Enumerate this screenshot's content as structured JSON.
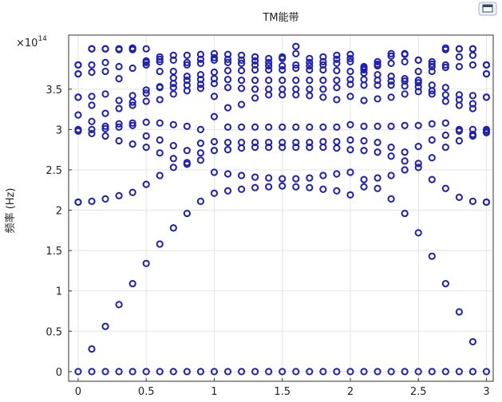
{
  "chart_data": {
    "type": "scatter",
    "title": "TM能带",
    "xlabel": "",
    "ylabel": "频率 (Hz)",
    "y_multiplier": "×10",
    "y_multiplier_exponent": "14",
    "xlim": [
      -0.07,
      3.05
    ],
    "ylim": [
      -0.12,
      4.17
    ],
    "grid": true,
    "legend": "none",
    "marker": "hollow-circle",
    "marker_color": "#1f1fb0",
    "xticks": [
      0,
      0.5,
      1,
      1.5,
      2,
      2.5,
      3
    ],
    "xtick_labels": [
      "0",
      "0.5",
      "1",
      "1.5",
      "2",
      "2.5",
      "3"
    ],
    "yticks": [
      0,
      0.5,
      1,
      1.5,
      2,
      2.5,
      3,
      3.5
    ],
    "ytick_labels": [
      "0",
      "0.5",
      "1",
      "1.5",
      "2",
      "2.5",
      "3",
      "3.5"
    ],
    "x": [
      0,
      0.1,
      0.2,
      0.3,
      0.4,
      0.5,
      0.6,
      0.7,
      0.8,
      0.9,
      1.0,
      1.1,
      1.2,
      1.3,
      1.4,
      1.5,
      1.6,
      1.7,
      1.8,
      1.9,
      2.0,
      2.1,
      2.2,
      2.3,
      2.4,
      2.5,
      2.6,
      2.7,
      2.8,
      2.9,
      3.0
    ],
    "series": [
      {
        "values": [
          0,
          0,
          0,
          0,
          0,
          0,
          0,
          0,
          0,
          0,
          0,
          0,
          0,
          0,
          0,
          0,
          0,
          0,
          0,
          0,
          0,
          0,
          0,
          0,
          0,
          0,
          0,
          0,
          0,
          0,
          0
        ]
      },
      {
        "values": [
          2.1,
          0.28,
          0.56,
          0.83,
          1.09,
          1.34,
          1.58,
          1.78,
          1.96,
          2.11,
          2.21,
          2.24,
          2.26,
          2.28,
          2.29,
          2.3,
          2.29,
          2.28,
          2.26,
          2.24,
          2.19,
          2.29,
          2.27,
          2.14,
          1.96,
          1.72,
          1.43,
          1.09,
          0.74,
          0.37,
          2.1
        ]
      },
      {
        "values": [
          2.1,
          2.11,
          2.14,
          2.18,
          2.22,
          2.32,
          2.43,
          2.53,
          2.59,
          2.62,
          2.47,
          2.45,
          2.43,
          2.41,
          2.4,
          2.39,
          2.39,
          2.4,
          2.43,
          2.45,
          2.47,
          2.38,
          2.4,
          2.43,
          2.5,
          2.58,
          2.38,
          2.27,
          2.16,
          2.11,
          2.1
        ]
      },
      {
        "values": [
          2.98,
          2.95,
          2.92,
          2.86,
          2.82,
          2.78,
          2.71,
          2.64,
          2.57,
          2.71,
          2.74,
          2.75,
          2.77,
          2.78,
          2.78,
          2.78,
          2.78,
          2.78,
          2.78,
          2.77,
          2.75,
          2.74,
          2.72,
          2.67,
          2.61,
          2.53,
          2.65,
          2.78,
          2.86,
          2.92,
          2.98
        ]
      },
      {
        "values": [
          3.0,
          3.0,
          3.01,
          3.03,
          3.05,
          2.92,
          2.87,
          2.8,
          2.74,
          2.83,
          2.85,
          2.84,
          2.84,
          2.84,
          2.84,
          2.84,
          2.84,
          2.84,
          2.85,
          2.85,
          2.87,
          2.86,
          2.84,
          2.78,
          2.72,
          2.79,
          2.87,
          2.93,
          2.98,
          3.0,
          3.0
        ]
      },
      {
        "values": [
          3.18,
          3.1,
          3.04,
          3.07,
          3.08,
          3.09,
          3.08,
          3.06,
          3.04,
          3.0,
          3.16,
          3.03,
          3.03,
          3.03,
          3.03,
          3.03,
          3.03,
          3.03,
          3.03,
          3.03,
          3.06,
          3.04,
          3.04,
          3.04,
          3.05,
          3.05,
          3.07,
          3.08,
          3.0,
          2.94,
          2.96
        ]
      },
      {
        "values": [
          3.4,
          3.3,
          3.2,
          3.26,
          3.3,
          3.35,
          3.37,
          3.44,
          3.48,
          3.51,
          3.41,
          3.27,
          3.31,
          3.39,
          3.43,
          3.43,
          3.43,
          3.42,
          3.4,
          3.37,
          3.41,
          3.36,
          3.38,
          3.4,
          3.44,
          3.47,
          3.44,
          3.35,
          3.3,
          3.26,
          3.4
        ]
      },
      {
        "values": [
          3.4,
          3.41,
          3.44,
          3.36,
          3.34,
          3.45,
          3.52,
          3.52,
          3.55,
          3.56,
          3.57,
          3.52,
          3.51,
          3.5,
          3.5,
          3.5,
          3.5,
          3.5,
          3.5,
          3.52,
          3.56,
          3.55,
          3.55,
          3.55,
          3.54,
          3.53,
          3.48,
          3.43,
          3.37,
          3.32,
          3.4
        ]
      },
      {
        "values": [
          3.69,
          3.71,
          3.72,
          3.63,
          3.42,
          3.49,
          3.53,
          3.57,
          3.61,
          3.62,
          3.63,
          3.62,
          3.61,
          3.61,
          3.61,
          3.61,
          3.61,
          3.61,
          3.61,
          3.61,
          3.62,
          3.62,
          3.61,
          3.6,
          3.6,
          3.58,
          3.55,
          3.52,
          3.43,
          3.42,
          3.69
        ]
      },
      {
        "values": [
          3.69,
          3.8,
          3.83,
          3.78,
          3.76,
          3.83,
          3.84,
          3.64,
          3.66,
          3.68,
          3.71,
          3.73,
          3.73,
          3.74,
          3.74,
          3.74,
          3.76,
          3.74,
          3.74,
          3.73,
          3.72,
          3.7,
          3.68,
          3.66,
          3.63,
          3.61,
          3.72,
          3.77,
          3.78,
          3.8,
          3.69
        ]
      },
      {
        "values": [
          3.8,
          4.0,
          4.0,
          3.99,
          3.99,
          3.8,
          3.87,
          3.72,
          3.8,
          3.82,
          3.86,
          3.83,
          3.82,
          3.8,
          3.79,
          3.79,
          3.8,
          3.79,
          3.8,
          3.82,
          3.84,
          3.76,
          3.79,
          3.82,
          3.84,
          3.86,
          3.78,
          3.8,
          3.9,
          3.92,
          3.8
        ]
      },
      {
        "values": [
          3.8,
          4.0,
          4.0,
          4.0,
          4.0,
          3.85,
          3.72,
          3.86,
          3.83,
          3.87,
          3.89,
          3.87,
          3.86,
          3.85,
          3.83,
          3.88,
          3.94,
          3.83,
          3.84,
          3.87,
          3.88,
          3.74,
          3.81,
          3.91,
          3.93,
          3.72,
          3.81,
          3.99,
          4.0,
          4.0,
          3.8
        ]
      },
      {
        "values": [
          3.8,
          4.0,
          4.0,
          4.0,
          4.01,
          4.0,
          3.9,
          3.92,
          3.92,
          3.93,
          3.94,
          3.93,
          3.92,
          3.9,
          3.88,
          3.9,
          4.03,
          3.88,
          3.9,
          3.92,
          3.93,
          3.78,
          3.84,
          3.94,
          3.94,
          3.86,
          3.84,
          4.01,
          4.0,
          4.0,
          3.8
        ]
      }
    ]
  }
}
